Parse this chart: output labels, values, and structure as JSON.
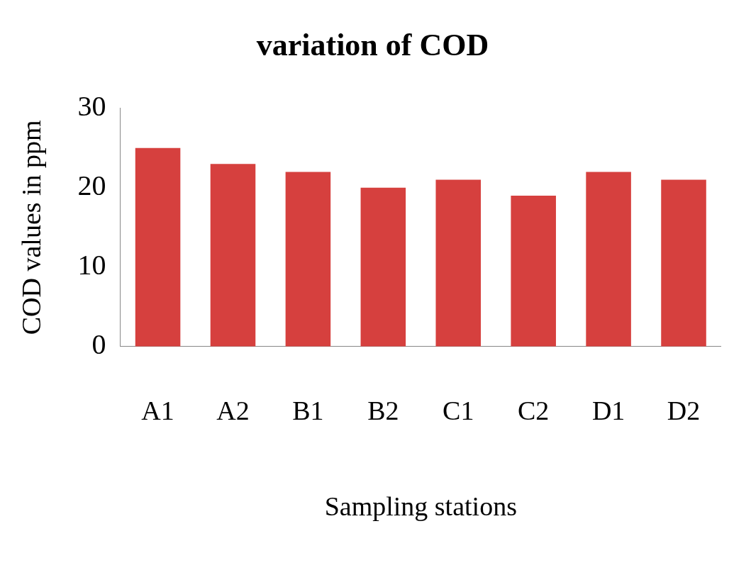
{
  "chart_data": {
    "type": "bar",
    "title": "variation of COD",
    "xlabel": "Sampling stations",
    "ylabel": "COD values in ppm",
    "categories": [
      "A1",
      "A2",
      "B1",
      "B2",
      "C1",
      "C2",
      "D1",
      "D2"
    ],
    "values": [
      25,
      23,
      22,
      20,
      21,
      19,
      22,
      21
    ],
    "color": "#d6403e",
    "ylim": [
      0,
      30
    ],
    "yticks": [
      0,
      10,
      20,
      30
    ],
    "grid": false,
    "legend": false
  }
}
